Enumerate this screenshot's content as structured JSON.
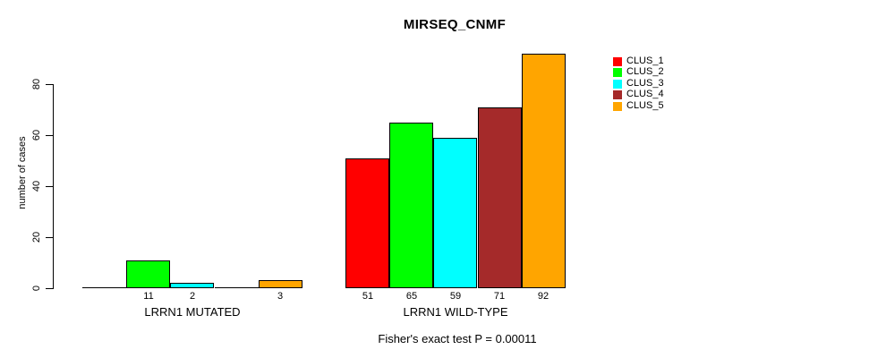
{
  "chart_data": {
    "type": "bar",
    "title": "MIRSEQ_CNMF",
    "ylabel": "number of cases",
    "xlabel": "",
    "footnote": "Fisher's exact test P = 0.00011",
    "y_axis": {
      "ticks": [
        0,
        20,
        40,
        60,
        80
      ],
      "range": [
        0,
        96
      ],
      "grid": false
    },
    "categories": [
      "CLUS_1",
      "CLUS_2",
      "CLUS_3",
      "CLUS_4",
      "CLUS_5"
    ],
    "series_colors": [
      "#FF0000",
      "#00FF00",
      "#00FFFF",
      "#A52A2A",
      "#FFA500"
    ],
    "groups": [
      {
        "label": "LRRN1 MUTATED",
        "values": [
          0,
          11,
          2,
          0,
          3
        ],
        "bar_labels": [
          "",
          "11",
          "2",
          "",
          "3"
        ]
      },
      {
        "label": "LRRN1 WILD-TYPE",
        "values": [
          51,
          65,
          59,
          71,
          92
        ],
        "bar_labels": [
          "51",
          "65",
          "59",
          "71",
          "92"
        ]
      }
    ],
    "legend": {
      "position": "right",
      "entries": [
        {
          "label": "CLUS_1",
          "color": "#FF0000"
        },
        {
          "label": "CLUS_2",
          "color": "#00FF00"
        },
        {
          "label": "CLUS_3",
          "color": "#00FFFF"
        },
        {
          "label": "CLUS_4",
          "color": "#A52A2A"
        },
        {
          "label": "CLUS_5",
          "color": "#FFA500"
        }
      ]
    }
  }
}
